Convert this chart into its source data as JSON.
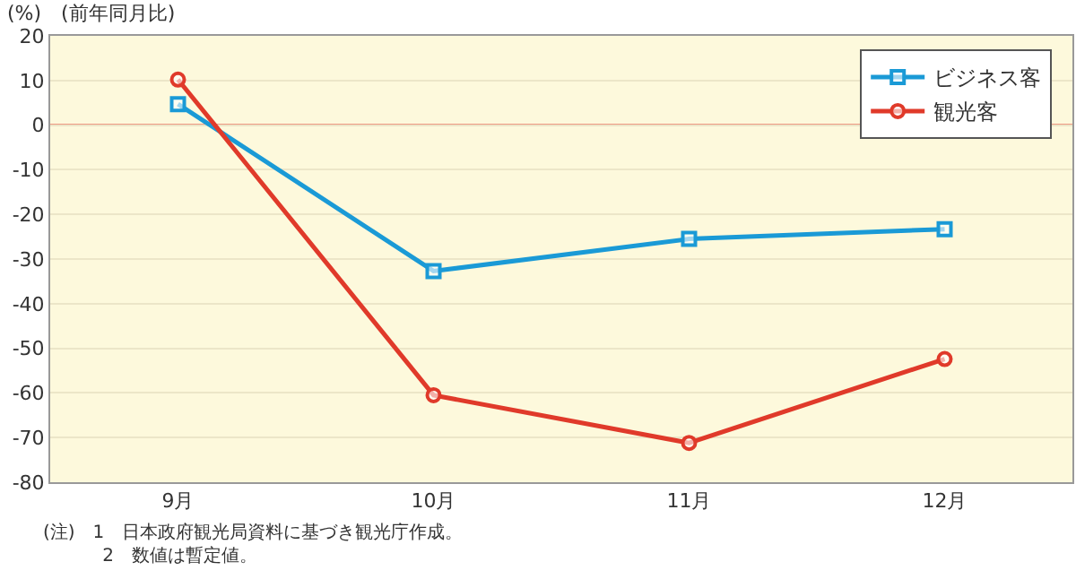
{
  "chart_data": {
    "type": "line",
    "ylabel": "(%)　(前年同月比)",
    "categories": [
      "9月",
      "10月",
      "11月",
      "12月"
    ],
    "series": [
      {
        "name": "ビジネス客",
        "color": "#1a9ad6",
        "values": [
          4.7,
          -32.7,
          -25.5,
          -23.3
        ],
        "marker": "square"
      },
      {
        "name": "観光客",
        "color": "#e03a2a",
        "values": [
          10.2,
          -60.5,
          -71.2,
          -52.4
        ],
        "marker": "circle"
      }
    ],
    "ylim": [
      -80,
      20
    ],
    "yticks": [
      20,
      10,
      0,
      -10,
      -20,
      -30,
      -40,
      -50,
      -60,
      -70,
      -80
    ],
    "grid": "y",
    "legend": "top right",
    "ref_lines": [
      {
        "axis": "y",
        "value": 0,
        "color": "#e03a2a"
      }
    ],
    "annotations": [
      "(注)　1　日本政府観光局資料に基づき観光庁作成。",
      "　　　 2　数値は暫定値。"
    ]
  }
}
